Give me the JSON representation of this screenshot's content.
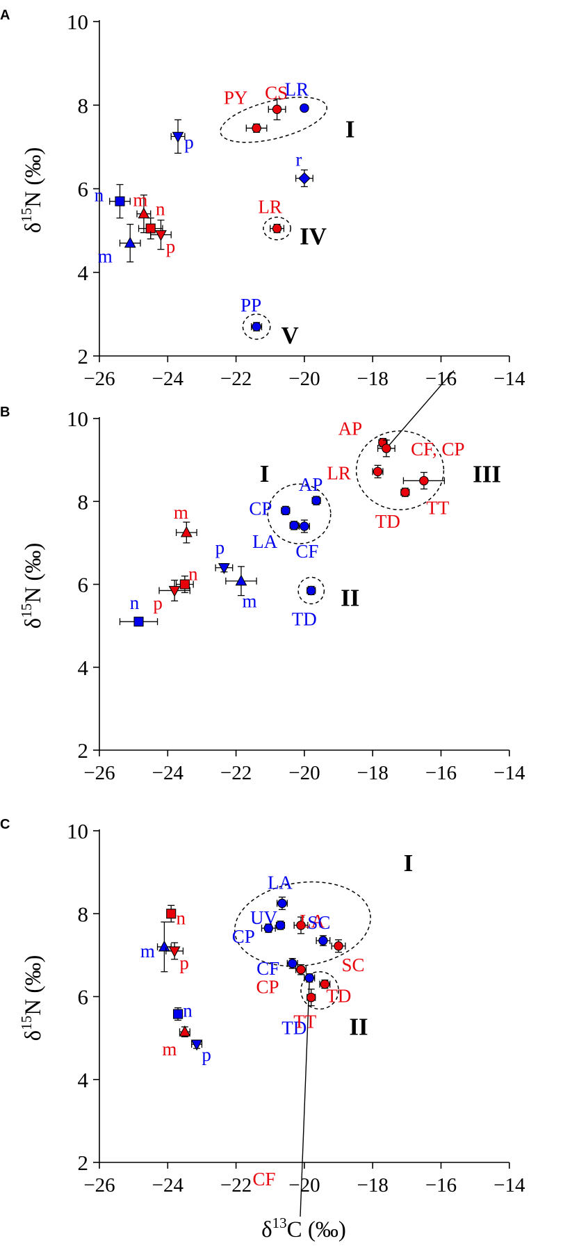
{
  "colors": {
    "red": "#e8000b",
    "blue": "#0000ee",
    "axis": "#000000"
  },
  "axes": {
    "xlabel_main": "δ",
    "xlabel_sup": "13",
    "xlabel_tail": "C (‰)",
    "ylabel_main": "δ",
    "ylabel_sup": "15",
    "ylabel_tail": "N (‰)"
  },
  "chart_data": [
    {
      "panel": "A",
      "type": "scatter",
      "xlim": [
        -26,
        -14
      ],
      "ylim": [
        2,
        10
      ],
      "xticks": [
        "−26",
        "−24",
        "−22",
        "−20",
        "−18",
        "−16",
        "−14"
      ],
      "yticks": [
        "2",
        "4",
        "6",
        "8",
        "10"
      ],
      "points": [
        {
          "x": -21.4,
          "y": 7.45,
          "xerr": 0.3,
          "yerr": 0.1,
          "color": "red",
          "marker": "circle",
          "label": "PY"
        },
        {
          "x": -20.8,
          "y": 7.9,
          "xerr": 0.25,
          "yerr": 0.25,
          "color": "red",
          "marker": "circle",
          "label": "CS"
        },
        {
          "x": -20.0,
          "y": 7.93,
          "xerr": 0.0,
          "yerr": 0.0,
          "color": "blue",
          "marker": "circle",
          "label": "LR"
        },
        {
          "x": -23.7,
          "y": 7.25,
          "xerr": 0.2,
          "yerr": 0.4,
          "color": "blue",
          "marker": "triangle-down",
          "label": "p"
        },
        {
          "x": -20.0,
          "y": 6.25,
          "xerr": 0.25,
          "yerr": 0.2,
          "color": "blue",
          "marker": "diamond",
          "label": "r"
        },
        {
          "x": -20.8,
          "y": 5.05,
          "xerr": 0.2,
          "yerr": 0.1,
          "color": "red",
          "marker": "circle",
          "label": "LR"
        },
        {
          "x": -25.4,
          "y": 5.7,
          "xerr": 0.3,
          "yerr": 0.4,
          "color": "blue",
          "marker": "square",
          "label": "n"
        },
        {
          "x": -24.7,
          "y": 5.4,
          "xerr": 0.2,
          "yerr": 0.45,
          "color": "red",
          "marker": "triangle-up",
          "label": "m"
        },
        {
          "x": -24.5,
          "y": 5.05,
          "xerr": 0.35,
          "yerr": 0.25,
          "color": "red",
          "marker": "square",
          "label": "n"
        },
        {
          "x": -24.2,
          "y": 4.9,
          "xerr": 0.3,
          "yerr": 0.35,
          "color": "red",
          "marker": "triangle-down",
          "label": "p"
        },
        {
          "x": -25.1,
          "y": 4.7,
          "xerr": 0.3,
          "yerr": 0.45,
          "color": "blue",
          "marker": "triangle-up",
          "label": "m"
        },
        {
          "x": -21.4,
          "y": 2.7,
          "xerr": 0.15,
          "yerr": 0.1,
          "color": "blue",
          "marker": "circle",
          "label": "PP"
        }
      ],
      "groups": [
        {
          "label": "I",
          "cx": -20.9,
          "cy": 7.65,
          "rx": 1.6,
          "ry": 0.45,
          "angle": -14
        },
        {
          "label": "IV",
          "cx": -20.8,
          "cy": 5.05,
          "rx": 0.4,
          "ry": 0.27,
          "angle": 0
        },
        {
          "label": "V",
          "cx": -21.4,
          "cy": 2.7,
          "rx": 0.4,
          "ry": 0.3,
          "angle": 0
        }
      ]
    },
    {
      "panel": "B",
      "type": "scatter",
      "xlim": [
        -26,
        -14
      ],
      "ylim": [
        2,
        10
      ],
      "xticks": [
        "−26",
        "−24",
        "−22",
        "−20",
        "−18",
        "−16",
        "−14"
      ],
      "yticks": [
        "2",
        "4",
        "6",
        "8",
        "10"
      ],
      "points": [
        {
          "x": -17.7,
          "y": 9.42,
          "xerr": 0.12,
          "yerr": 0.1,
          "color": "red",
          "marker": "circle",
          "label": "AP"
        },
        {
          "x": -17.6,
          "y": 9.28,
          "xerr": 0.25,
          "yerr": 0.2,
          "color": "red",
          "marker": "circle",
          "label": "CF, CP"
        },
        {
          "x": -17.85,
          "y": 8.72,
          "xerr": 0.15,
          "yerr": 0.15,
          "color": "red",
          "marker": "circle",
          "label": "LR"
        },
        {
          "x": -16.5,
          "y": 8.5,
          "xerr": 0.6,
          "yerr": 0.2,
          "color": "red",
          "marker": "circle",
          "label": "TT"
        },
        {
          "x": -17.05,
          "y": 8.22,
          "xerr": 0.12,
          "yerr": 0.1,
          "color": "red",
          "marker": "circle",
          "label": "TD"
        },
        {
          "x": -19.65,
          "y": 8.02,
          "xerr": 0.12,
          "yerr": 0.1,
          "color": "blue",
          "marker": "circle",
          "label": "AP"
        },
        {
          "x": -20.55,
          "y": 7.78,
          "xerr": 0.12,
          "yerr": 0.1,
          "color": "blue",
          "marker": "circle",
          "label": "CP"
        },
        {
          "x": -20.3,
          "y": 7.42,
          "xerr": 0.12,
          "yerr": 0.1,
          "color": "blue",
          "marker": "circle",
          "label": "LA"
        },
        {
          "x": -20.0,
          "y": 7.4,
          "xerr": 0.15,
          "yerr": 0.15,
          "color": "blue",
          "marker": "circle",
          "label": "CF"
        },
        {
          "x": -19.8,
          "y": 5.85,
          "xerr": 0.12,
          "yerr": 0.1,
          "color": "blue",
          "marker": "circle",
          "label": "TD"
        },
        {
          "x": -23.45,
          "y": 7.25,
          "xerr": 0.3,
          "yerr": 0.25,
          "color": "red",
          "marker": "triangle-up",
          "label": "m"
        },
        {
          "x": -22.35,
          "y": 6.4,
          "xerr": 0.25,
          "yerr": 0.1,
          "color": "blue",
          "marker": "triangle-down",
          "label": "p"
        },
        {
          "x": -21.85,
          "y": 6.08,
          "xerr": 0.45,
          "yerr": 0.35,
          "color": "blue",
          "marker": "triangle-up",
          "label": "m"
        },
        {
          "x": -23.5,
          "y": 6.0,
          "xerr": 0.25,
          "yerr": 0.2,
          "color": "red",
          "marker": "square",
          "label": "n"
        },
        {
          "x": -23.8,
          "y": 5.85,
          "xerr": 0.45,
          "yerr": 0.25,
          "color": "red",
          "marker": "triangle-down",
          "label": "p"
        },
        {
          "x": -24.85,
          "y": 5.1,
          "xerr": 0.55,
          "yerr": 0.1,
          "color": "blue",
          "marker": "square",
          "label": "n"
        }
      ],
      "groups": [
        {
          "label": "I",
          "cx": -20.15,
          "cy": 7.7,
          "rx": 0.92,
          "ry": 0.72,
          "angle": 0
        },
        {
          "label": "II",
          "cx": -19.8,
          "cy": 5.85,
          "rx": 0.38,
          "ry": 0.32,
          "angle": 0
        },
        {
          "label": "III",
          "cx": -17.2,
          "cy": 8.75,
          "rx": 1.28,
          "ry": 0.95,
          "angle": 0
        }
      ]
    },
    {
      "panel": "C",
      "type": "scatter",
      "xlim": [
        -26,
        -14
      ],
      "ylim": [
        2,
        10
      ],
      "xticks": [
        "−26",
        "−24",
        "−22",
        "−20",
        "−18",
        "−16",
        "−14"
      ],
      "yticks": [
        "2",
        "4",
        "6",
        "8",
        "10"
      ],
      "points": [
        {
          "x": -23.9,
          "y": 8.0,
          "xerr": 0.12,
          "yerr": 0.2,
          "color": "red",
          "marker": "square",
          "label": "n"
        },
        {
          "x": -24.1,
          "y": 7.2,
          "xerr": 0.2,
          "yerr": 0.6,
          "color": "blue",
          "marker": "triangle-up",
          "label": "m"
        },
        {
          "x": -23.8,
          "y": 7.1,
          "xerr": 0.25,
          "yerr": 0.2,
          "color": "red",
          "marker": "triangle-down",
          "label": "p"
        },
        {
          "x": -23.7,
          "y": 5.58,
          "xerr": 0.12,
          "yerr": 0.15,
          "color": "blue",
          "marker": "square",
          "label": "n"
        },
        {
          "x": -23.5,
          "y": 5.15,
          "xerr": 0.15,
          "yerr": 0.12,
          "color": "red",
          "marker": "triangle-up",
          "label": "m"
        },
        {
          "x": -23.15,
          "y": 4.85,
          "xerr": 0.15,
          "yerr": 0.1,
          "color": "blue",
          "marker": "triangle-down",
          "label": "p"
        },
        {
          "x": -20.65,
          "y": 8.25,
          "xerr": 0.15,
          "yerr": 0.15,
          "color": "blue",
          "marker": "circle",
          "label": "LA"
        },
        {
          "x": -20.7,
          "y": 7.72,
          "xerr": 0.12,
          "yerr": 0.1,
          "color": "blue",
          "marker": "circle",
          "label": "UV"
        },
        {
          "x": -21.05,
          "y": 7.65,
          "xerr": 0.2,
          "yerr": 0.1,
          "color": "blue",
          "marker": "circle",
          "label": "CP"
        },
        {
          "x": -20.1,
          "y": 7.72,
          "xerr": 0.2,
          "yerr": 0.2,
          "color": "red",
          "marker": "circle",
          "label": "LA"
        },
        {
          "x": -19.45,
          "y": 7.35,
          "xerr": 0.2,
          "yerr": 0.12,
          "color": "blue",
          "marker": "circle",
          "label": "SC"
        },
        {
          "x": -19.0,
          "y": 7.22,
          "xerr": 0.2,
          "yerr": 0.15,
          "color": "red",
          "marker": "circle",
          "label": "SC"
        },
        {
          "x": -20.35,
          "y": 6.8,
          "xerr": 0.15,
          "yerr": 0.12,
          "color": "blue",
          "marker": "circle",
          "label": "CF"
        },
        {
          "x": -20.1,
          "y": 6.65,
          "xerr": 0.15,
          "yerr": 0.12,
          "color": "red",
          "marker": "circle",
          "label": "CP"
        },
        {
          "x": -19.85,
          "y": 6.45,
          "xerr": 0.15,
          "yerr": 0.1,
          "color": "blue",
          "marker": "circle",
          "label": "TD"
        },
        {
          "x": -19.4,
          "y": 6.3,
          "xerr": 0.15,
          "yerr": 0.1,
          "color": "red",
          "marker": "circle",
          "label": "TD"
        },
        {
          "x": -19.8,
          "y": 5.98,
          "xerr": 0.12,
          "yerr": 0.2,
          "color": "red",
          "marker": "circle",
          "label": "TT"
        }
      ],
      "extra_labels": [
        {
          "text": "CF",
          "color": "red"
        }
      ],
      "groups": [
        {
          "label": "I",
          "cx": -20.05,
          "cy": 7.75,
          "rx": 2.0,
          "ry": 1.0,
          "angle": -8
        },
        {
          "label": "II",
          "cx": -19.55,
          "cy": 6.15,
          "rx": 0.55,
          "ry": 0.45,
          "angle": 0
        }
      ]
    }
  ]
}
